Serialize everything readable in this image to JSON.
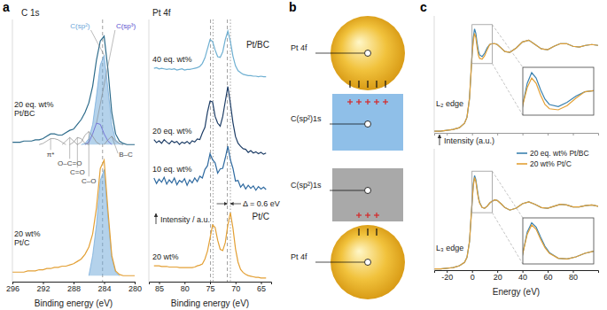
{
  "panel_labels": [
    "a",
    "b",
    "c"
  ],
  "diagram": {
    "labels": [
      "Pt 4f",
      "C(sp²)1s",
      "C(sp²)1s",
      "Pt 4f"
    ]
  },
  "chart_data": [
    {
      "type": "line",
      "title": "C 1s",
      "xlabel": "Binding energy (eV)",
      "xlim": [
        296,
        280
      ],
      "xticks": [
        296,
        292,
        288,
        284,
        280
      ],
      "ylim": [
        0,
        2.2
      ],
      "tick_labels": "x",
      "x": [
        296,
        295.5,
        295,
        294.5,
        294,
        293.5,
        293,
        292.5,
        292,
        291.5,
        291,
        290.5,
        290,
        289.5,
        289,
        288.5,
        288,
        287.5,
        287,
        286.5,
        286,
        285.5,
        285,
        284.5,
        284,
        283.5,
        283,
        282.5,
        282,
        281.5,
        281,
        280.5,
        280
      ],
      "vlines": [
        {
          "values": [
            284.2
          ],
          "line_style": "dashed"
        }
      ],
      "series": [
        {
          "name": "20 eq. wt% Pt/BC",
          "color": "#2b6a8a",
          "values": [
            1.17,
            1.17,
            1.17,
            1.18,
            1.18,
            1.18,
            1.19,
            1.19,
            1.2,
            1.22,
            1.24,
            1.24,
            1.23,
            1.23,
            1.25,
            1.27,
            1.28,
            1.32,
            1.36,
            1.42,
            1.5,
            1.64,
            1.86,
            2.02,
            2.06,
            1.78,
            1.42,
            1.24,
            1.18,
            1.16,
            1.15,
            1.15,
            1.15
          ]
        },
        {
          "name": "C(sp²)",
          "type": "area",
          "color": "#6aa5d8",
          "values": [
            null,
            null,
            null,
            null,
            null,
            null,
            null,
            null,
            null,
            null,
            null,
            null,
            null,
            null,
            null,
            null,
            null,
            null,
            1.15,
            1.16,
            1.2,
            1.32,
            1.56,
            1.82,
            1.9,
            1.62,
            1.32,
            1.19,
            1.16,
            1.15,
            null,
            null,
            null
          ]
        },
        {
          "name": "C(sp³)",
          "color": "#5a4fcf",
          "values": [
            null,
            null,
            null,
            null,
            null,
            null,
            null,
            null,
            null,
            null,
            null,
            null,
            null,
            null,
            null,
            null,
            null,
            null,
            null,
            1.15,
            1.17,
            1.24,
            1.33,
            1.32,
            1.24,
            1.18,
            1.15,
            null,
            null,
            null,
            null,
            null,
            null
          ]
        },
        {
          "name": "π*",
          "color": "#8a8a8a",
          "values": [
            null,
            null,
            null,
            null,
            null,
            null,
            null,
            1.15,
            1.16,
            1.18,
            1.2,
            1.2,
            1.19,
            1.17,
            1.15,
            null,
            null,
            null,
            null,
            null,
            null,
            null,
            null,
            null,
            null,
            null,
            null,
            null,
            null,
            null,
            null,
            null,
            null
          ]
        },
        {
          "name": "O–C=O",
          "color": "#8a8a8a",
          "values": [
            null,
            null,
            null,
            null,
            null,
            null,
            null,
            null,
            null,
            null,
            null,
            null,
            null,
            1.15,
            1.18,
            1.21,
            1.18,
            1.15,
            null,
            null,
            null,
            null,
            null,
            null,
            null,
            null,
            null,
            null,
            null,
            null,
            null,
            null,
            null
          ]
        },
        {
          "name": "C=O",
          "color": "#8a8a8a",
          "values": [
            null,
            null,
            null,
            null,
            null,
            null,
            null,
            null,
            null,
            null,
            null,
            null,
            null,
            null,
            null,
            1.15,
            1.17,
            1.21,
            1.2,
            1.16,
            1.15,
            null,
            null,
            null,
            null,
            null,
            null,
            null,
            null,
            null,
            null,
            null,
            null
          ]
        },
        {
          "name": "C–O",
          "color": "#8a8a8a",
          "values": [
            null,
            null,
            null,
            null,
            null,
            null,
            null,
            null,
            null,
            null,
            null,
            null,
            null,
            null,
            null,
            null,
            null,
            1.15,
            1.17,
            1.23,
            1.26,
            1.22,
            1.17,
            1.15,
            null,
            null,
            null,
            null,
            null,
            null,
            null,
            null,
            null
          ]
        },
        {
          "name": "B–C",
          "color": "#8a8a8a",
          "values": [
            null,
            null,
            null,
            null,
            null,
            null,
            null,
            null,
            null,
            null,
            null,
            null,
            null,
            null,
            null,
            null,
            null,
            null,
            null,
            null,
            null,
            null,
            null,
            null,
            1.15,
            1.19,
            1.22,
            1.18,
            1.16,
            1.15,
            null,
            null,
            null
          ]
        },
        {
          "name": "20 wt% Pt/C",
          "color": "#e3a035",
          "values": [
            0.08,
            0.08,
            0.08,
            0.08,
            0.09,
            0.09,
            0.09,
            0.1,
            0.1,
            0.11,
            0.11,
            0.12,
            0.12,
            0.13,
            0.13,
            0.14,
            0.15,
            0.17,
            0.19,
            0.23,
            0.29,
            0.4,
            0.62,
            0.95,
            1.02,
            0.6,
            0.22,
            0.09,
            0.06,
            0.05,
            0.05,
            0.05,
            0.05
          ]
        },
        {
          "type": "area",
          "color": "#6aa5d8",
          "values": [
            null,
            null,
            null,
            null,
            null,
            null,
            null,
            null,
            null,
            null,
            null,
            null,
            null,
            null,
            null,
            null,
            null,
            null,
            null,
            null,
            0.05,
            0.22,
            0.48,
            0.85,
            0.94,
            0.55,
            0.2,
            0.08,
            0.05,
            null,
            null,
            null,
            null
          ]
        }
      ]
    },
    {
      "type": "line",
      "title": "Pt 4f",
      "xlabel": "Binding energy (eV)",
      "ylabel": "Intensity / a.u.",
      "xlim": [
        87,
        63
      ],
      "xticks": [
        85,
        80,
        75,
        70,
        65
      ],
      "ylim": [
        0,
        4.3
      ],
      "tick_labels": "x",
      "x": [
        86,
        85.5,
        85,
        84.5,
        84,
        83.5,
        83,
        82.5,
        82,
        81.5,
        81,
        80.5,
        80,
        79.5,
        79,
        78.5,
        78,
        77.5,
        77,
        76.5,
        76,
        75.5,
        75,
        74.5,
        74,
        73.5,
        73,
        72.5,
        72,
        71.5,
        71,
        70.5,
        70,
        69.5,
        69,
        68.5,
        68,
        67.5,
        67,
        66.5,
        66,
        65.5,
        65,
        64.5,
        64
      ],
      "vlines": [
        {
          "values": [
            74.9,
            71.6
          ],
          "line_style": "dashed"
        },
        {
          "values": [
            74.4,
            71.0
          ],
          "line_style": "dotted"
        }
      ],
      "annotations": [
        "Pt/BC",
        "Pt/C",
        "Δ = 0.6 eV"
      ],
      "series": [
        {
          "name": "40 eq. wt%",
          "color": "#6fb0d2",
          "values": [
            3.5,
            3.51,
            3.49,
            3.5,
            3.49,
            3.48,
            3.49,
            3.48,
            3.49,
            3.47,
            3.48,
            3.49,
            3.47,
            3.48,
            3.48,
            3.49,
            3.5,
            3.51,
            3.53,
            3.58,
            3.67,
            3.82,
            3.97,
            3.94,
            3.8,
            3.69,
            3.68,
            3.77,
            3.97,
            4.11,
            3.94,
            3.7,
            3.54,
            3.46,
            3.43,
            3.4,
            3.39,
            3.38,
            3.38,
            3.37,
            3.37,
            3.36,
            3.37,
            3.36,
            3.36
          ]
        },
        {
          "name": "20 eq. wt%",
          "color": "#1d3d66",
          "values": [
            2.33,
            2.28,
            2.31,
            2.27,
            2.33,
            2.29,
            2.26,
            2.31,
            2.28,
            2.3,
            2.25,
            2.29,
            2.27,
            2.3,
            2.26,
            2.31,
            2.29,
            2.34,
            2.33,
            2.44,
            2.53,
            2.78,
            2.96,
            2.95,
            2.71,
            2.6,
            2.55,
            2.71,
            2.96,
            3.2,
            2.92,
            2.61,
            2.38,
            2.27,
            2.22,
            2.18,
            2.17,
            2.12,
            2.15,
            2.11,
            2.13,
            2.1,
            2.12,
            2.09,
            2.11
          ]
        },
        {
          "name": "10 eq. wt%",
          "color": "#2f6aa0",
          "values": [
            1.7,
            1.61,
            1.68,
            1.63,
            1.71,
            1.6,
            1.67,
            1.62,
            1.7,
            1.59,
            1.66,
            1.63,
            1.69,
            1.58,
            1.67,
            1.62,
            1.7,
            1.64,
            1.73,
            1.7,
            1.84,
            1.9,
            2.1,
            2.0,
            1.95,
            1.78,
            1.85,
            1.86,
            2.03,
            2.22,
            2.0,
            1.86,
            1.65,
            1.66,
            1.55,
            1.6,
            1.52,
            1.58,
            1.53,
            1.57,
            1.5,
            1.56,
            1.52,
            1.55,
            1.51
          ]
        },
        {
          "name": "20 wt%",
          "color": "#e3a035",
          "values": [
            0.26,
            0.26,
            0.26,
            0.25,
            0.25,
            0.25,
            0.24,
            0.24,
            0.24,
            0.24,
            0.23,
            0.23,
            0.23,
            0.23,
            0.23,
            0.23,
            0.24,
            0.26,
            0.27,
            0.29,
            0.37,
            0.5,
            0.71,
            0.93,
            0.89,
            0.68,
            0.53,
            0.51,
            0.64,
            0.93,
            1.13,
            0.88,
            0.54,
            0.32,
            0.2,
            0.15,
            0.12,
            0.1,
            0.09,
            0.08,
            0.07,
            0.07,
            0.06,
            0.06,
            0.06
          ]
        }
      ]
    },
    {
      "type": "line",
      "title": "L₂ edge",
      "xlim": [
        -30,
        100
      ],
      "xticks": [
        -20,
        0,
        20,
        40,
        60,
        80
      ],
      "ylim": [
        0,
        1.35
      ],
      "tick_labels": false,
      "x": [
        -30,
        -25,
        -20,
        -15,
        -10,
        -6,
        -4,
        -2,
        0,
        1,
        2,
        3,
        4,
        5,
        6,
        8,
        10,
        12,
        14,
        16,
        18,
        20,
        23,
        26,
        30,
        35,
        40,
        45,
        50,
        55,
        60,
        65,
        70,
        75,
        80,
        85,
        90,
        95,
        100
      ],
      "inset": {
        "xlim": [
          0,
          16
        ],
        "ylim": [
          0.8,
          1.25
        ]
      },
      "series": [
        {
          "color": "#3b82b0",
          "values": [
            0.02,
            0.02,
            0.03,
            0.04,
            0.06,
            0.11,
            0.18,
            0.4,
            0.9,
            1.1,
            1.2,
            1.15,
            1.04,
            0.95,
            0.9,
            0.88,
            0.92,
            0.98,
            1.02,
            1.03,
            1.03,
            1.02,
            0.98,
            0.94,
            0.93,
            0.98,
            1.05,
            1.07,
            1.02,
            0.97,
            0.96,
            1.0,
            1.03,
            1.03,
            1.0,
            0.99,
            1.01,
            1.02,
            1.01
          ]
        },
        {
          "color": "#e3a035",
          "values": [
            0.02,
            0.02,
            0.03,
            0.04,
            0.06,
            0.11,
            0.18,
            0.4,
            0.9,
            1.06,
            1.15,
            1.1,
            0.99,
            0.9,
            0.86,
            0.85,
            0.89,
            0.96,
            1.02,
            1.03,
            1.03,
            1.02,
            0.98,
            0.94,
            0.93,
            0.98,
            1.05,
            1.07,
            1.02,
            0.97,
            0.96,
            1.0,
            1.03,
            1.03,
            1.0,
            0.99,
            1.01,
            1.02,
            1.01
          ]
        }
      ]
    },
    {
      "type": "line",
      "title": "L₃ edge",
      "xlabel": "Energy (eV)",
      "ylabel": "Intensity (a.u.)",
      "xlim": [
        -30,
        100
      ],
      "xticks": [
        -20,
        0,
        20,
        40,
        60,
        80
      ],
      "ylim": [
        0,
        1.9
      ],
      "tick_labels": "x",
      "legend": "upper right",
      "x": [
        -30,
        -25,
        -20,
        -15,
        -10,
        -6,
        -4,
        -2,
        0,
        1,
        2,
        3,
        4,
        5,
        6,
        8,
        10,
        12,
        14,
        16,
        18,
        20,
        23,
        26,
        30,
        35,
        40,
        45,
        50,
        55,
        60,
        65,
        70,
        75,
        80,
        85,
        90,
        95,
        100
      ],
      "inset": {
        "xlim": [
          0,
          16
        ],
        "ylim": [
          0.9,
          1.55
        ]
      },
      "series": [
        {
          "name": "20 eq. wt% Pt/BC",
          "color": "#3b82b0",
          "values": [
            0.02,
            0.02,
            0.03,
            0.04,
            0.07,
            0.12,
            0.2,
            0.45,
            1.05,
            1.35,
            1.48,
            1.42,
            1.28,
            1.15,
            1.06,
            0.98,
            0.97,
            1.0,
            1.05,
            1.08,
            1.1,
            1.09,
            1.04,
            0.98,
            0.94,
            0.97,
            1.04,
            1.07,
            1.03,
            0.98,
            0.97,
            1.0,
            1.03,
            1.02,
            0.99,
            0.99,
            1.01,
            1.02,
            1.0
          ]
        },
        {
          "name": "20 wt% Pt/C",
          "color": "#e3a035",
          "values": [
            0.02,
            0.02,
            0.03,
            0.04,
            0.07,
            0.12,
            0.2,
            0.45,
            1.05,
            1.32,
            1.45,
            1.39,
            1.25,
            1.13,
            1.05,
            0.98,
            0.97,
            1.0,
            1.05,
            1.08,
            1.1,
            1.09,
            1.04,
            0.98,
            0.94,
            0.97,
            1.04,
            1.07,
            1.03,
            0.98,
            0.97,
            1.0,
            1.03,
            1.02,
            0.99,
            0.99,
            1.01,
            1.02,
            1.0
          ]
        }
      ]
    }
  ]
}
